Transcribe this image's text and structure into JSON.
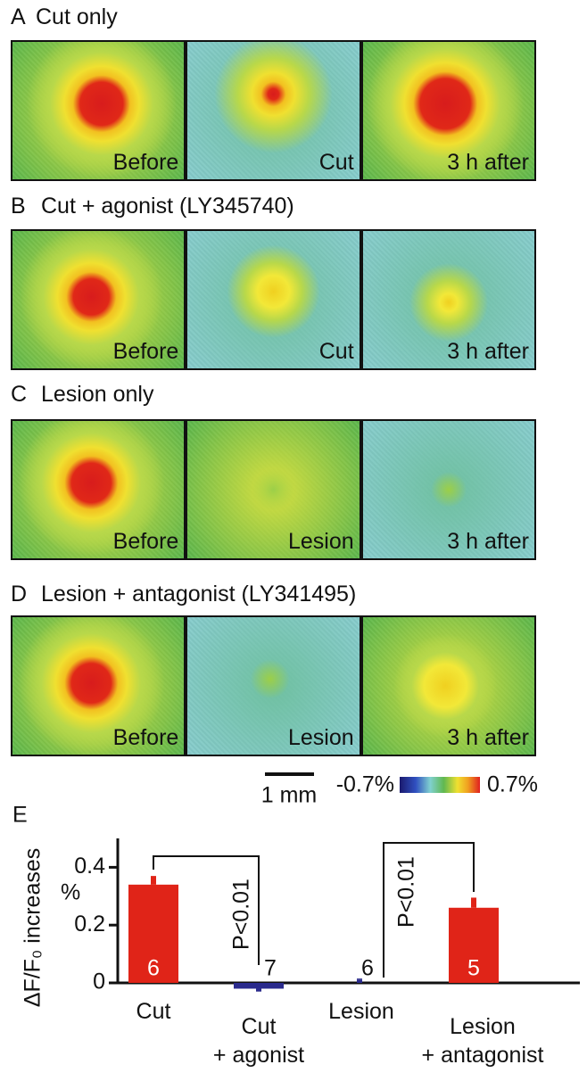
{
  "panels": [
    {
      "letter": "A",
      "title": "Cut only",
      "images": [
        "Before",
        "Cut",
        "3 h after"
      ]
    },
    {
      "letter": "B",
      "title": "Cut + agonist (LY345740)",
      "images": [
        "Before",
        "Cut",
        "3 h after"
      ]
    },
    {
      "letter": "C",
      "title": "Lesion only",
      "images": [
        "Before",
        "Lesion",
        "3 h after"
      ]
    },
    {
      "letter": "D",
      "title": "Lesion + antagonist (LY341495)",
      "images": [
        "Before",
        "Lesion",
        "3 h after"
      ]
    }
  ],
  "scale_bar": "1 mm",
  "colorbar": {
    "min_label": "-0.7%",
    "max_label": "0.7%"
  },
  "chart_data": {
    "type": "bar",
    "letter": "E",
    "y_label": "ΔF/F₀ increases",
    "y_unit": "%",
    "categories": [
      "Cut",
      "Cut\n+ agonist",
      "Lesion",
      "Lesion\n+ antagonist"
    ],
    "values": [
      0.34,
      -0.02,
      0.01,
      0.26
    ],
    "errors": [
      0.03,
      0.01,
      0.005,
      0.035
    ],
    "colors": [
      "#e02418",
      "#2a2a8c",
      "#2a2a8c",
      "#e02418"
    ],
    "bar_labels": [
      "6",
      "7",
      "6",
      "5"
    ],
    "annotations": [
      "P<0.01",
      "P<0.01"
    ],
    "ylim": [
      0,
      0.5
    ],
    "yticks": [
      0,
      0.2,
      0.4
    ]
  }
}
